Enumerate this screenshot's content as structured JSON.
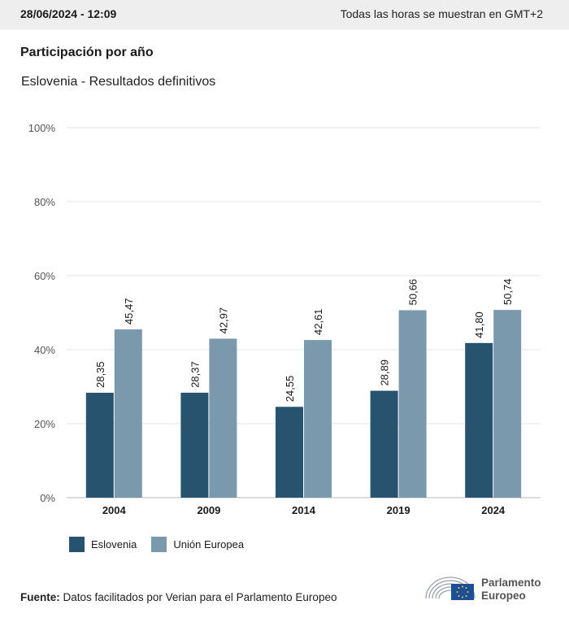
{
  "header": {
    "datetime": "28/06/2024 - 12:09",
    "timezone_note": "Todas las horas se muestran en GMT+2"
  },
  "chart_data": {
    "type": "bar",
    "title": "Participación por año",
    "subtitle": "Eslovenia - Resultados definitivos",
    "categories": [
      "2004",
      "2009",
      "2014",
      "2019",
      "2024"
    ],
    "series": [
      {
        "name": "Eslovenia",
        "color": "#27536f",
        "values": [
          28.35,
          28.37,
          24.55,
          28.89,
          41.8
        ],
        "labels": [
          "28,35",
          "28,37",
          "24,55",
          "28,89",
          "41,80"
        ]
      },
      {
        "name": "Unión Europea",
        "color": "#7b99ac",
        "values": [
          45.47,
          42.97,
          42.61,
          50.66,
          50.74
        ],
        "labels": [
          "45,47",
          "42,97",
          "42,61",
          "50,66",
          "50,74"
        ]
      }
    ],
    "ylim": [
      0,
      100
    ],
    "yticks": [
      "0%",
      "20%",
      "40%",
      "60%",
      "80%",
      "100%"
    ],
    "grid": true,
    "legend_position": "bottom-left"
  },
  "footer": {
    "source_label": "Fuente:",
    "source_text": "Datos facilitados por Verian para el Parlamento Europeo",
    "logo_line1": "Parlamento",
    "logo_line2": "Europeo"
  }
}
